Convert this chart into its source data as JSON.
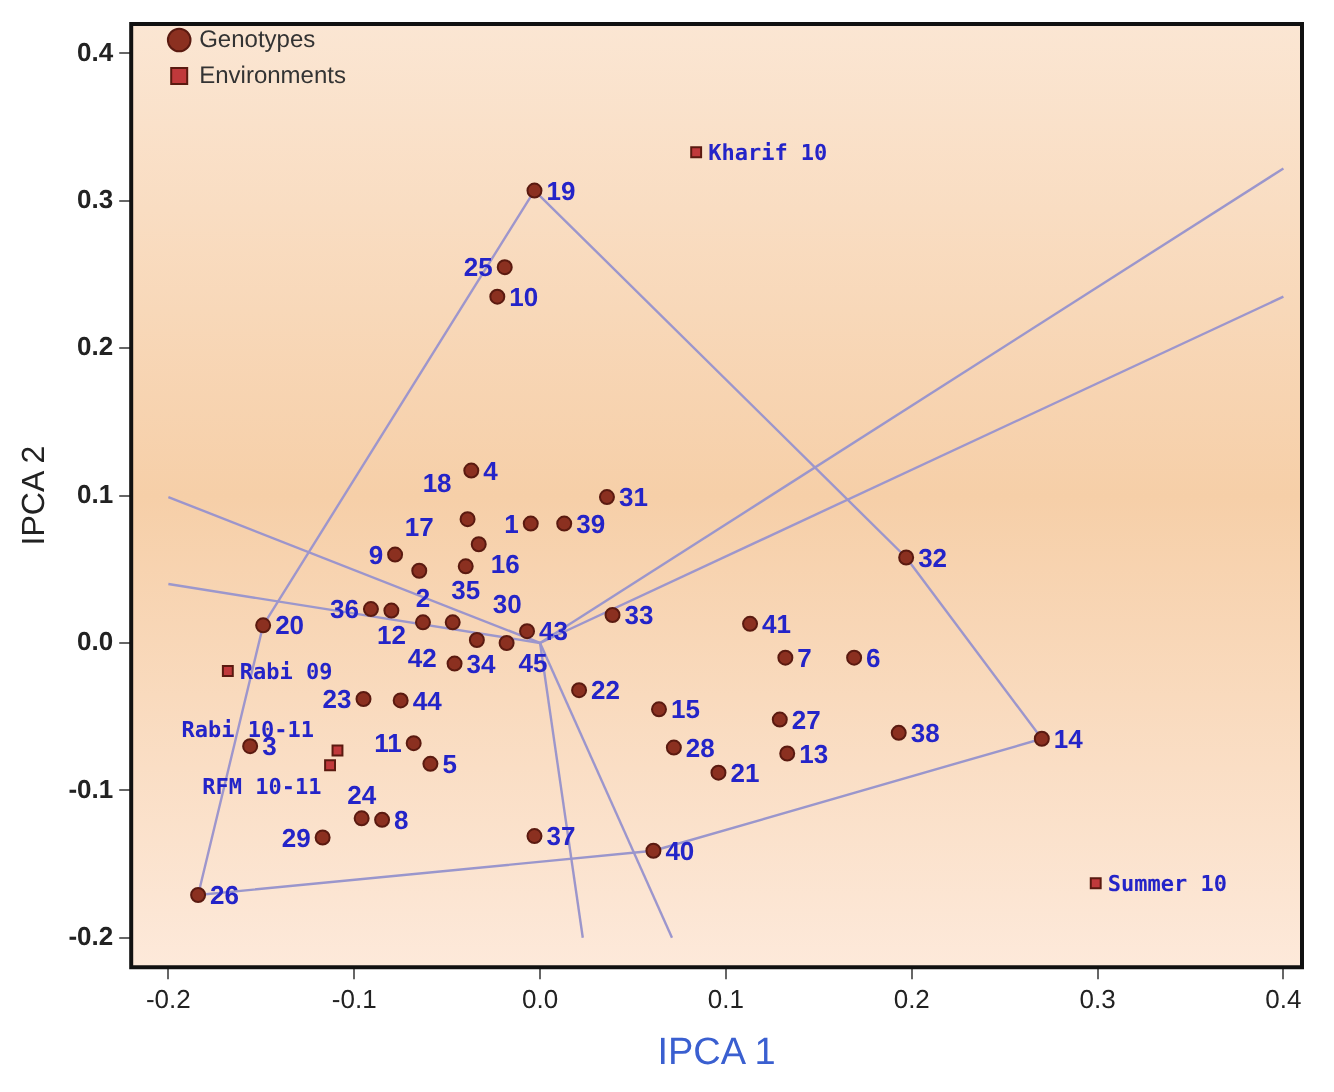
{
  "chart_data": {
    "type": "scatter",
    "xlabel": "IPCA 1",
    "ylabel": "IPCA 2",
    "xlim": [
      -0.22,
      0.41
    ],
    "ylim": [
      -0.22,
      0.42
    ],
    "xticks": [
      -0.2,
      -0.1,
      {
        "value": 0,
        "label": "0.0"
      },
      0.1,
      0.2,
      0.3,
      0.4
    ],
    "yticks": [
      -0.2,
      -0.1,
      {
        "value": 0,
        "label": "0.0"
      },
      0.1,
      0.2,
      0.3,
      0.4
    ],
    "grid": false,
    "legend": "top left",
    "series": [
      {
        "type": "line",
        "color": "#9c96cc",
        "marker": "none",
        "x": [
          -0.003,
          0.197,
          0.27
        ],
        "values": [
          0.307,
          0.058,
          -0.065
        ]
      },
      {
        "type": "line",
        "color": "#9a96cc",
        "marker": "none",
        "x": [
          -0.184,
          0.061,
          0.27
        ],
        "values": [
          -0.171,
          -0.141,
          -0.065
        ]
      },
      {
        "type": "line",
        "color": "#9e96cc",
        "marker": "none",
        "x": [
          -0.184,
          -0.149,
          -0.003
        ],
        "values": [
          -0.171,
          0.012,
          0.307
        ]
      },
      {
        "type": "line",
        "color": "#9b96cc",
        "marker": "none",
        "x": [
          0,
          0.4
        ],
        "values": [
          0,
          0.322
        ]
      },
      {
        "type": "line",
        "color": "#9d96cc",
        "marker": "none",
        "x": [
          0,
          0.4
        ],
        "values": [
          0,
          0.235
        ]
      },
      {
        "type": "line",
        "color": "#9c95cc",
        "marker": "none",
        "x": [
          0,
          -0.2
        ],
        "values": [
          0,
          0.099
        ]
      },
      {
        "type": "line",
        "color": "#9c97cc",
        "marker": "none",
        "x": [
          0,
          -0.2
        ],
        "values": [
          0,
          0.04
        ]
      },
      {
        "type": "line",
        "color": "#9c96cb",
        "marker": "none",
        "x": [
          0,
          0.023
        ],
        "values": [
          0,
          -0.2
        ]
      },
      {
        "type": "line",
        "color": "#9c96cd",
        "marker": "none",
        "x": [
          0,
          0.071
        ],
        "values": [
          0,
          -0.2
        ]
      },
      {
        "name": "Genotypes",
        "type": "scatter",
        "color": "#8b3020",
        "marker": "circle",
        "x": [
          -0.005,
          -0.063,
          -0.156,
          -0.037,
          -0.059,
          0.169,
          0.132,
          -0.085,
          -0.078,
          -0.023,
          -0.068,
          -0.08,
          0.133,
          0.27,
          0.064,
          -0.033,
          -0.065,
          -0.039,
          -0.003,
          -0.149,
          0.096,
          0.021,
          -0.095,
          -0.096,
          -0.019,
          -0.184,
          0.129,
          0.072,
          -0.117,
          -0.034,
          0.036,
          0.197,
          0.039,
          -0.046,
          -0.04,
          -0.091,
          -0.003,
          0.193,
          0.013,
          0.061,
          0.113,
          -0.047,
          -0.007,
          -0.075,
          -0.018
        ],
        "values": [
          0.081,
          0.014,
          -0.07,
          0.117,
          -0.082,
          -0.01,
          -0.01,
          -0.12,
          0.06,
          0.235,
          -0.068,
          0.022,
          -0.075,
          -0.065,
          -0.045,
          0.067,
          0.049,
          0.084,
          0.307,
          0.012,
          -0.088,
          -0.032,
          -0.038,
          -0.119,
          0.255,
          -0.171,
          -0.052,
          -0.071,
          -0.132,
          0.002,
          0.099,
          0.058,
          0.019,
          -0.014,
          0.052,
          0.023,
          -0.131,
          -0.061,
          0.081,
          -0.141,
          0.013,
          0.014,
          0.008,
          -0.039,
          0.0
        ]
      },
      {
        "name": "Environments",
        "type": "scatter",
        "color": "#c0393b",
        "marker": "square",
        "x": [
          0.084,
          -0.168,
          -0.109,
          -0.113,
          0.299
        ],
        "values": [
          0.333,
          -0.019,
          -0.073,
          -0.083,
          -0.163
        ]
      }
    ],
    "annotations": [
      {
        "text": "1",
        "x": -0.005,
        "y": 0.081
      },
      {
        "text": "2",
        "x": -0.063,
        "y": 0.014
      },
      {
        "text": "3",
        "x": -0.156,
        "y": -0.07
      },
      {
        "text": "4",
        "x": -0.037,
        "y": 0.117
      },
      {
        "text": "5",
        "x": -0.059,
        "y": -0.082
      },
      {
        "text": "6",
        "x": 0.169,
        "y": -0.01
      },
      {
        "text": "7",
        "x": 0.132,
        "y": -0.01
      },
      {
        "text": "8",
        "x": -0.085,
        "y": -0.12
      },
      {
        "text": "9",
        "x": -0.078,
        "y": 0.06
      },
      {
        "text": "10",
        "x": -0.023,
        "y": 0.235
      },
      {
        "text": "11",
        "x": -0.068,
        "y": -0.068
      },
      {
        "text": "12",
        "x": -0.08,
        "y": 0.022
      },
      {
        "text": "13",
        "x": 0.133,
        "y": -0.075
      },
      {
        "text": "14",
        "x": 0.27,
        "y": -0.065
      },
      {
        "text": "15",
        "x": 0.064,
        "y": -0.045
      },
      {
        "text": "16",
        "x": -0.033,
        "y": 0.067
      },
      {
        "text": "17",
        "x": -0.065,
        "y": 0.049
      },
      {
        "text": "18",
        "x": -0.039,
        "y": 0.084
      },
      {
        "text": "19",
        "x": -0.003,
        "y": 0.307
      },
      {
        "text": "20",
        "x": -0.149,
        "y": 0.012
      },
      {
        "text": "21",
        "x": 0.096,
        "y": -0.088
      },
      {
        "text": "22",
        "x": 0.021,
        "y": -0.032
      },
      {
        "text": "23",
        "x": -0.095,
        "y": -0.038
      },
      {
        "text": "24",
        "x": -0.096,
        "y": -0.119
      },
      {
        "text": "25",
        "x": -0.019,
        "y": 0.255
      },
      {
        "text": "26",
        "x": -0.184,
        "y": -0.171
      },
      {
        "text": "27",
        "x": 0.129,
        "y": -0.052
      },
      {
        "text": "28",
        "x": 0.072,
        "y": -0.071
      },
      {
        "text": "29",
        "x": -0.117,
        "y": -0.132
      },
      {
        "text": "30",
        "x": -0.034,
        "y": 0.002
      },
      {
        "text": "31",
        "x": 0.036,
        "y": 0.099
      },
      {
        "text": "32",
        "x": 0.197,
        "y": 0.058
      },
      {
        "text": "33",
        "x": 0.039,
        "y": 0.019
      },
      {
        "text": "34",
        "x": -0.046,
        "y": -0.014
      },
      {
        "text": "35",
        "x": -0.04,
        "y": 0.052
      },
      {
        "text": "36",
        "x": -0.091,
        "y": 0.023
      },
      {
        "text": "37",
        "x": -0.003,
        "y": -0.131
      },
      {
        "text": "38",
        "x": 0.193,
        "y": -0.061
      },
      {
        "text": "39",
        "x": 0.013,
        "y": 0.081
      },
      {
        "text": "40",
        "x": 0.061,
        "y": -0.141
      },
      {
        "text": "41",
        "x": 0.113,
        "y": 0.013
      },
      {
        "text": "42",
        "x": -0.047,
        "y": 0.014
      },
      {
        "text": "43",
        "x": -0.007,
        "y": 0.008
      },
      {
        "text": "44",
        "x": -0.075,
        "y": -0.039
      },
      {
        "text": "45",
        "x": -0.018,
        "y": 0.0
      },
      {
        "text": "Kharif 10",
        "x": 0.084,
        "y": 0.333
      },
      {
        "text": "Rabi 09",
        "x": -0.168,
        "y": -0.019
      },
      {
        "text": "RFM 10-11",
        "x": -0.109,
        "y": -0.073
      },
      {
        "text": "Rabi 10-11",
        "x": -0.113,
        "y": -0.083
      },
      {
        "text": "Summer 10",
        "x": 0.299,
        "y": -0.163
      }
    ]
  }
}
